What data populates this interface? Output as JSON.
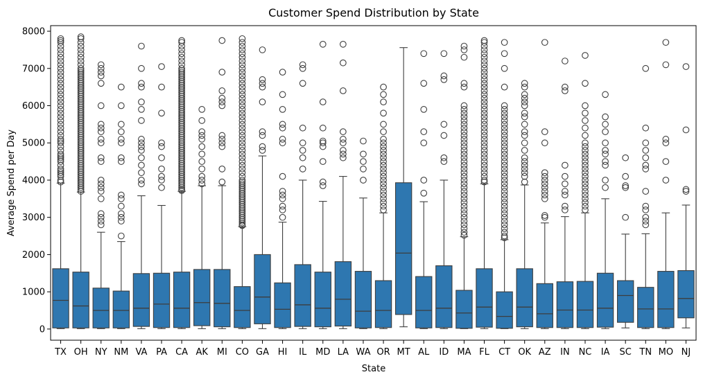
{
  "chart_data": {
    "type": "box",
    "title": "Customer Spend Distribution by State",
    "xlabel": "State",
    "ylabel": "Average Spend per Day",
    "ylim": [
      -300,
      8150
    ],
    "yticks": [
      0,
      1000,
      2000,
      3000,
      4000,
      5000,
      6000,
      7000,
      8000
    ],
    "grid": false,
    "box_color": "#2e77b0",
    "categories": [
      "TX",
      "OH",
      "NY",
      "NM",
      "VA",
      "PA",
      "CA",
      "AK",
      "MI",
      "CO",
      "GA",
      "HI",
      "IL",
      "MD",
      "LA",
      "WA",
      "OR",
      "MT",
      "AL",
      "ID",
      "MA",
      "FL",
      "CT",
      "OK",
      "AZ",
      "IN",
      "NC",
      "IA",
      "SC",
      "TN",
      "MO",
      "NJ"
    ],
    "boxes": [
      {
        "state": "TX",
        "whisker_low": 10,
        "q1": 30,
        "median": 770,
        "q3": 1620,
        "whisker_high": 3920,
        "outliers": [
          3950,
          4000,
          4100,
          4150,
          4200,
          4250,
          4300,
          4400,
          4500,
          4550,
          4600,
          4650,
          4700,
          4800,
          4900,
          5000,
          5050,
          5100,
          5200,
          5300,
          5400,
          5500,
          5600,
          5700,
          5800,
          5900,
          6000,
          6100,
          6200,
          6300,
          6400,
          6500,
          6600,
          6700,
          6800,
          6900,
          7000,
          7100,
          7200,
          7300,
          7400,
          7500,
          7600,
          7700,
          7750,
          7800
        ]
      },
      {
        "state": "OH",
        "whisker_low": 10,
        "q1": 30,
        "median": 620,
        "q3": 1530,
        "whisker_high": 3680,
        "outliers": [
          3700,
          3750,
          3800,
          3850,
          3900,
          3950,
          4000,
          4050,
          4100,
          4150,
          4200,
          4250,
          4300,
          4350,
          4400,
          4450,
          4500,
          4550,
          4600,
          4650,
          4700,
          4750,
          4800,
          4850,
          4900,
          4950,
          5000,
          5050,
          5100,
          5150,
          5200,
          5250,
          5300,
          5350,
          5400,
          5450,
          5500,
          5550,
          5600,
          5650,
          5700,
          5750,
          5800,
          5850,
          5900,
          5950,
          6000,
          6050,
          6100,
          6150,
          6200,
          6250,
          6300,
          6350,
          6400,
          6450,
          6500,
          6550,
          6600,
          6650,
          6700,
          6750,
          6800,
          6850,
          6900,
          6950,
          7000,
          7100,
          7200,
          7300,
          7400,
          7500,
          7600,
          7700,
          7800,
          7850
        ]
      },
      {
        "state": "NY",
        "whisker_low": 10,
        "q1": 30,
        "median": 500,
        "q3": 1100,
        "whisker_high": 2600,
        "outliers": [
          2800,
          2900,
          3000,
          3100,
          3500,
          3700,
          3800,
          3900,
          4000,
          4500,
          4600,
          5000,
          5100,
          5300,
          5400,
          5500,
          6000,
          6600,
          6800,
          6900,
          7000,
          7100
        ]
      },
      {
        "state": "NM",
        "whisker_low": 10,
        "q1": 30,
        "median": 500,
        "q3": 1020,
        "whisker_high": 2350,
        "outliers": [
          2500,
          2900,
          3000,
          3100,
          3300,
          3500,
          3600,
          4500,
          4600,
          5000,
          5100,
          5300,
          5500,
          6000,
          6500
        ]
      },
      {
        "state": "VA",
        "whisker_low": 10,
        "q1": 70,
        "median": 560,
        "q3": 1490,
        "whisker_high": 3580,
        "outliers": [
          3900,
          4000,
          4200,
          4400,
          4600,
          4800,
          4900,
          5000,
          5100,
          5600,
          5900,
          6100,
          6500,
          6600,
          7000,
          7600
        ]
      },
      {
        "state": "PA",
        "whisker_low": 10,
        "q1": 40,
        "median": 670,
        "q3": 1500,
        "whisker_high": 3320,
        "outliers": [
          3800,
          4000,
          4100,
          4300,
          4600,
          4900,
          5000,
          5800,
          6500,
          7050
        ]
      },
      {
        "state": "CA",
        "whisker_low": 10,
        "q1": 40,
        "median": 560,
        "q3": 1530,
        "whisker_high": 3700,
        "outliers": [
          3720,
          3750,
          3800,
          3850,
          3900,
          3950,
          4000,
          4050,
          4100,
          4150,
          4200,
          4250,
          4300,
          4350,
          4400,
          4450,
          4500,
          4550,
          4600,
          4650,
          4700,
          4750,
          4800,
          4850,
          4900,
          4950,
          5000,
          5050,
          5100,
          5150,
          5200,
          5250,
          5300,
          5350,
          5400,
          5450,
          5500,
          5550,
          5600,
          5650,
          5700,
          5750,
          5800,
          5850,
          5900,
          5950,
          6000,
          6050,
          6100,
          6150,
          6200,
          6250,
          6300,
          6350,
          6400,
          6450,
          6500,
          6550,
          6600,
          6650,
          6700,
          6750,
          6800,
          6850,
          6900,
          6950,
          7000,
          7100,
          7200,
          7300,
          7400,
          7500,
          7600,
          7700,
          7750
        ]
      },
      {
        "state": "AK",
        "whisker_low": 10,
        "q1": 90,
        "median": 710,
        "q3": 1600,
        "whisker_high": 3850,
        "outliers": [
          3900,
          4000,
          4100,
          4300,
          4500,
          4700,
          4900,
          5100,
          5200,
          5300,
          5600,
          5900
        ]
      },
      {
        "state": "MI",
        "whisker_low": 10,
        "q1": 60,
        "median": 690,
        "q3": 1600,
        "whisker_high": 3850,
        "outliers": [
          3950,
          4300,
          4900,
          5000,
          5100,
          5200,
          6000,
          6100,
          6200,
          6400,
          6900,
          7750
        ]
      },
      {
        "state": "CO",
        "whisker_low": 10,
        "q1": 40,
        "median": 500,
        "q3": 1140,
        "whisker_high": 2750,
        "outliers": [
          2780,
          2800,
          2850,
          2900,
          2950,
          3000,
          3050,
          3100,
          3150,
          3200,
          3250,
          3300,
          3350,
          3400,
          3450,
          3500,
          3550,
          3600,
          3650,
          3700,
          3750,
          3800,
          3850,
          3900,
          3950,
          4000,
          4100,
          4200,
          4300,
          4400,
          4500,
          4600,
          4700,
          4800,
          4900,
          5000,
          5100,
          5200,
          5300,
          5400,
          5500,
          5600,
          5700,
          5800,
          5900,
          6000,
          6100,
          6200,
          6300,
          6400,
          6500,
          6600,
          6700,
          6800,
          6900,
          7000,
          7100,
          7200,
          7300,
          7400,
          7500,
          7600,
          7700,
          7800
        ]
      },
      {
        "state": "GA",
        "whisker_low": 10,
        "q1": 140,
        "median": 860,
        "q3": 2000,
        "whisker_high": 4650,
        "outliers": [
          4800,
          4900,
          5200,
          5300,
          6100,
          6500,
          6600,
          6700,
          7500
        ]
      },
      {
        "state": "HI",
        "whisker_low": 10,
        "q1": 40,
        "median": 530,
        "q3": 1240,
        "whisker_high": 2870,
        "outliers": [
          3000,
          3200,
          3300,
          3500,
          3600,
          3700,
          4100,
          5000,
          5100,
          5400,
          5500,
          5900,
          6300,
          6900
        ]
      },
      {
        "state": "IL",
        "whisker_low": 10,
        "q1": 70,
        "median": 650,
        "q3": 1730,
        "whisker_high": 4000,
        "outliers": [
          4300,
          4600,
          4800,
          5000,
          5400,
          6600,
          7000,
          7100
        ]
      },
      {
        "state": "MD",
        "whisker_low": 10,
        "q1": 60,
        "median": 560,
        "q3": 1530,
        "whisker_high": 3430,
        "outliers": [
          3850,
          3950,
          4500,
          4900,
          5000,
          5050,
          5400,
          6100,
          7650
        ]
      },
      {
        "state": "LA",
        "whisker_low": 10,
        "q1": 80,
        "median": 800,
        "q3": 1810,
        "whisker_high": 4100,
        "outliers": [
          4600,
          4700,
          4800,
          5000,
          5100,
          5300,
          6400,
          7150,
          7650
        ]
      },
      {
        "state": "WA",
        "whisker_low": 10,
        "q1": 30,
        "median": 480,
        "q3": 1550,
        "whisker_high": 3520,
        "outliers": [
          4000,
          4300,
          4500,
          4700,
          5050
        ]
      },
      {
        "state": "OR",
        "whisker_low": 10,
        "q1": 40,
        "median": 500,
        "q3": 1300,
        "whisker_high": 3120,
        "outliers": [
          3200,
          3300,
          3400,
          3500,
          3600,
          3700,
          3800,
          3900,
          4000,
          4100,
          4200,
          4300,
          4400,
          4500,
          4600,
          4700,
          4800,
          4900,
          5000,
          5100,
          5300,
          5500,
          5800,
          6100,
          6300,
          6500
        ]
      },
      {
        "state": "MT",
        "whisker_low": 60,
        "q1": 390,
        "median": 2040,
        "q3": 3930,
        "whisker_high": 7560,
        "outliers": []
      },
      {
        "state": "AL",
        "whisker_low": 10,
        "q1": 30,
        "median": 500,
        "q3": 1410,
        "whisker_high": 3420,
        "outliers": [
          3650,
          4000,
          5000,
          5300,
          5900,
          6600,
          7400
        ]
      },
      {
        "state": "ID",
        "whisker_low": 10,
        "q1": 40,
        "median": 560,
        "q3": 1700,
        "whisker_high": 4000,
        "outliers": [
          4500,
          4600,
          5200,
          5500,
          6700,
          6800,
          7400
        ]
      },
      {
        "state": "MA",
        "whisker_low": 10,
        "q1": 20,
        "median": 430,
        "q3": 1040,
        "whisker_high": 2480,
        "outliers": [
          2520,
          2600,
          2700,
          2800,
          2900,
          3000,
          3100,
          3200,
          3300,
          3400,
          3500,
          3600,
          3700,
          3800,
          3900,
          4000,
          4100,
          4200,
          4300,
          4400,
          4500,
          4600,
          4700,
          4800,
          4900,
          5000,
          5100,
          5200,
          5300,
          5400,
          5500,
          5600,
          5700,
          5800,
          5900,
          6000,
          6500,
          6600,
          7300,
          7500,
          7600
        ]
      },
      {
        "state": "FL",
        "whisker_low": 10,
        "q1": 50,
        "median": 590,
        "q3": 1620,
        "whisker_high": 3900,
        "outliers": [
          3950,
          4000,
          4100,
          4200,
          4300,
          4400,
          4500,
          4600,
          4700,
          4800,
          4900,
          5000,
          5100,
          5200,
          5300,
          5400,
          5500,
          5600,
          5700,
          5800,
          5900,
          6000,
          6100,
          6200,
          6300,
          6400,
          6500,
          6600,
          6700,
          6800,
          6900,
          7000,
          7100,
          7200,
          7300,
          7400,
          7500,
          7600,
          7700,
          7750
        ]
      },
      {
        "state": "CT",
        "whisker_low": 10,
        "q1": 20,
        "median": 340,
        "q3": 1000,
        "whisker_high": 2400,
        "outliers": [
          2450,
          2500,
          2600,
          2700,
          2800,
          2900,
          3000,
          3100,
          3200,
          3300,
          3400,
          3500,
          3600,
          3700,
          3800,
          3900,
          4000,
          4100,
          4200,
          4300,
          4400,
          4500,
          4600,
          4700,
          4800,
          4900,
          5000,
          5100,
          5200,
          5300,
          5400,
          5500,
          5600,
          5700,
          5800,
          5900,
          6000,
          6500,
          7000,
          7400,
          7700
        ]
      },
      {
        "state": "OK",
        "whisker_low": 10,
        "q1": 60,
        "median": 590,
        "q3": 1620,
        "whisker_high": 3870,
        "outliers": [
          3950,
          4100,
          4200,
          4300,
          4400,
          4500,
          4600,
          4800,
          5000,
          5200,
          5300,
          5500,
          5700,
          5800,
          6000,
          6100,
          6200,
          6300,
          6500,
          6600
        ]
      },
      {
        "state": "AZ",
        "whisker_low": 10,
        "q1": 40,
        "median": 410,
        "q3": 1220,
        "whisker_high": 2850,
        "outliers": [
          3000,
          3050,
          3500,
          3600,
          3700,
          3800,
          3900,
          4000,
          4100,
          4200,
          5000,
          5300,
          7700
        ]
      },
      {
        "state": "IN",
        "whisker_low": 10,
        "q1": 40,
        "median": 510,
        "q3": 1270,
        "whisker_high": 3020,
        "outliers": [
          3200,
          3300,
          3600,
          3700,
          3900,
          4100,
          4400,
          6400,
          6500,
          7200
        ]
      },
      {
        "state": "NC",
        "whisker_low": 10,
        "q1": 40,
        "median": 510,
        "q3": 1280,
        "whisker_high": 3120,
        "outliers": [
          3200,
          3300,
          3400,
          3500,
          3600,
          3700,
          3800,
          3900,
          4000,
          4100,
          4200,
          4300,
          4400,
          4500,
          4600,
          4700,
          4800,
          4900,
          5000,
          5200,
          5400,
          5600,
          5800,
          6000,
          6600,
          7350
        ]
      },
      {
        "state": "IA",
        "whisker_low": 10,
        "q1": 50,
        "median": 560,
        "q3": 1500,
        "whisker_high": 3500,
        "outliers": [
          3800,
          4000,
          4400,
          4500,
          4700,
          4800,
          5000,
          5300,
          5500,
          5700,
          6300
        ]
      },
      {
        "state": "SC",
        "whisker_low": 30,
        "q1": 180,
        "median": 900,
        "q3": 1300,
        "whisker_high": 2550,
        "outliers": [
          3000,
          3800,
          3850,
          4100,
          4600
        ]
      },
      {
        "state": "TN",
        "whisker_low": 10,
        "q1": 40,
        "median": 540,
        "q3": 1120,
        "whisker_high": 2560,
        "outliers": [
          2800,
          2900,
          3000,
          3200,
          3300,
          3700,
          4300,
          4400,
          4600,
          4800,
          5000,
          5400,
          7000
        ]
      },
      {
        "state": "MO",
        "whisker_low": 10,
        "q1": 40,
        "median": 540,
        "q3": 1550,
        "whisker_high": 3120,
        "outliers": [
          4000,
          4500,
          5000,
          5100,
          7100,
          7700
        ]
      },
      {
        "state": "NJ",
        "whisker_low": 30,
        "q1": 300,
        "median": 820,
        "q3": 1570,
        "whisker_high": 3330,
        "outliers": [
          3700,
          3750,
          5350,
          7050
        ]
      }
    ]
  }
}
